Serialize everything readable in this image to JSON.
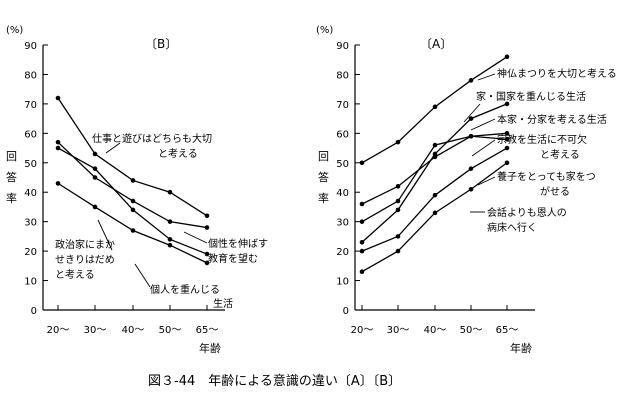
{
  "figure_caption": "図３-44　年齢による意識の違い〔A〕〔B〕",
  "chart_data": [
    {
      "type": "line",
      "title": "〔B〕",
      "y_unit": "(%)",
      "ylabel": "回答率",
      "xlabel": "年齢",
      "categories": [
        "20～",
        "30～",
        "40～",
        "50～",
        "65～"
      ],
      "ylim": [
        0,
        90
      ],
      "yticks": [
        "0",
        "10",
        "20",
        "30",
        "40",
        "50",
        "60",
        "70",
        "80",
        "90"
      ],
      "grid": false,
      "series": [
        {
          "name": "仕事と遊びはどちらも大切と考える",
          "values": [
            72,
            53,
            44,
            40,
            32
          ]
        },
        {
          "name": "個性を伸ばす教育を望む",
          "values": [
            57,
            45,
            37,
            30,
            28
          ]
        },
        {
          "name": "個人を重んじる生活",
          "values": [
            55,
            48,
            34,
            24,
            19
          ]
        },
        {
          "name": "政治家にまかせきりはだめと考える",
          "values": [
            43,
            35,
            27,
            22,
            16
          ]
        }
      ]
    },
    {
      "type": "line",
      "title": "〔A〕",
      "y_unit": "(%)",
      "ylabel": "回答率",
      "xlabel": "年齢",
      "categories": [
        "20～",
        "30～",
        "40～",
        "50～",
        "65～"
      ],
      "ylim": [
        0,
        90
      ],
      "yticks": [
        "0",
        "10",
        "20",
        "30",
        "40",
        "50",
        "60",
        "70",
        "80",
        "90"
      ],
      "grid": false,
      "series": [
        {
          "name": "神仏まつりを大切と考える",
          "values": [
            50,
            57,
            69,
            78,
            86
          ]
        },
        {
          "name": "家・国家を重んじる生活",
          "values": [
            23,
            34,
            53,
            65,
            70
          ]
        },
        {
          "name": "本家・分家を考える生活",
          "values": [
            30,
            37,
            56,
            59,
            60
          ]
        },
        {
          "name": "宗教を生活に不可欠と考える",
          "values": [
            36,
            42,
            52,
            59,
            58
          ]
        },
        {
          "name": "養子をとっても家をつがせる",
          "values": [
            20,
            25,
            39,
            48,
            55
          ]
        },
        {
          "name": "会話よりも恩人の病床へ行く",
          "values": [
            13,
            20,
            33,
            41,
            50
          ]
        }
      ]
    }
  ]
}
